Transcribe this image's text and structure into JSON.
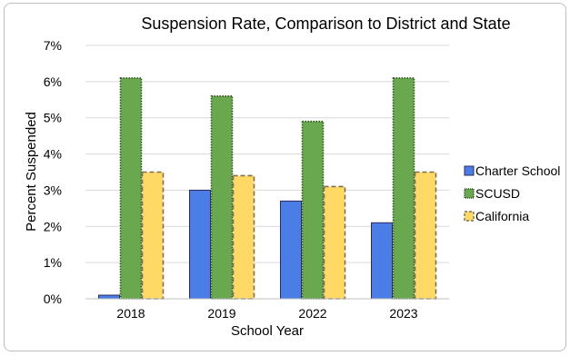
{
  "chart_data": {
    "type": "bar",
    "title": "Suspension Rate, Comparison to District and State",
    "xlabel": "School Year",
    "ylabel": "Percent Suspended",
    "categories": [
      "2018",
      "2019",
      "2022",
      "2023"
    ],
    "y_ticks": [
      "0%",
      "1%",
      "2%",
      "3%",
      "4%",
      "5%",
      "6%",
      "7%"
    ],
    "ylim": [
      0,
      7
    ],
    "grid": true,
    "legend_position": "right",
    "series": [
      {
        "name": "Charter School",
        "values": [
          0.1,
          3.0,
          2.7,
          2.1
        ],
        "color": "#4a7ee6",
        "border": "#2b2b5a",
        "style": "solid"
      },
      {
        "name": "SCUSD",
        "values": [
          6.1,
          5.6,
          4.9,
          6.1
        ],
        "color": "#6aa84f",
        "border": "#2f4f1f",
        "style": "dotted"
      },
      {
        "name": "California",
        "values": [
          3.5,
          3.4,
          3.1,
          3.5
        ],
        "color": "#ffd966",
        "border": "#7f6f4f",
        "style": "dashed"
      }
    ]
  }
}
